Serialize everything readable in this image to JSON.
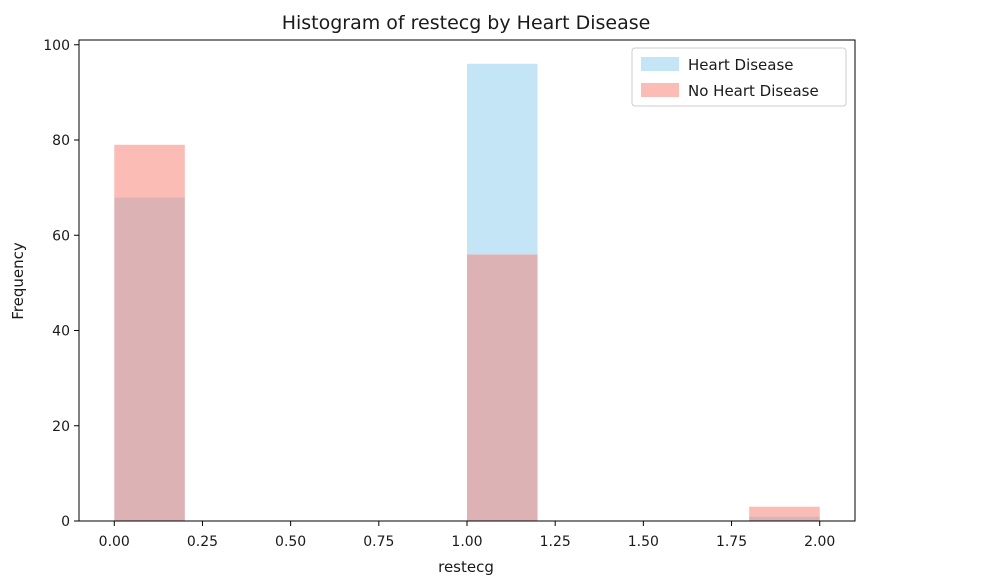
{
  "chart_data": {
    "type": "bar",
    "title": "Histogram of restecg by Heart Disease",
    "xlabel": "restecg",
    "ylabel": "Frequency",
    "xlim": [
      -0.1,
      2.1
    ],
    "ylim": [
      0,
      101
    ],
    "x_ticks": [
      0.0,
      0.25,
      0.5,
      0.75,
      1.0,
      1.25,
      1.5,
      1.75,
      2.0
    ],
    "x_tick_labels": [
      "0.00",
      "0.25",
      "0.50",
      "0.75",
      "1.00",
      "1.25",
      "1.50",
      "1.75",
      "2.00"
    ],
    "y_ticks": [
      0,
      20,
      40,
      60,
      80,
      100
    ],
    "y_tick_labels": [
      "0",
      "20",
      "40",
      "60",
      "80",
      "100"
    ],
    "grid": false,
    "legend": "top-right",
    "bin_edges": [
      0.0,
      0.2,
      0.4,
      0.6,
      0.8,
      1.0,
      1.2,
      1.4,
      1.6,
      1.8,
      2.0
    ],
    "overlap_color": "#dcb2b4",
    "series": [
      {
        "name": "Heart Disease",
        "color": "#c3e5f5",
        "values": [
          68,
          0,
          0,
          0,
          0,
          96,
          0,
          0,
          0,
          1
        ]
      },
      {
        "name": "No Heart Disease",
        "color": "#fbbcb6",
        "values": [
          79,
          0,
          0,
          0,
          0,
          56,
          0,
          0,
          0,
          3
        ]
      }
    ]
  }
}
